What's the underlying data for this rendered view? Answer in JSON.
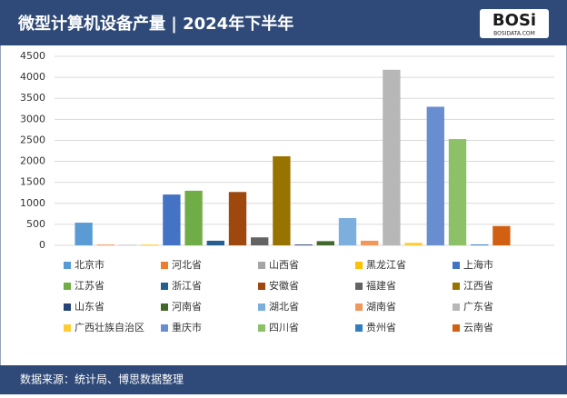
{
  "chart_data": {
    "type": "bar",
    "title": "微型计算机设备产量 | 2024年下半年",
    "categories": [
      "北京市",
      "河北省",
      "山西省",
      "黑龙江省",
      "上海市",
      "江苏省",
      "浙江省",
      "安徽省",
      "福建省",
      "江西省",
      "山东省",
      "河南省",
      "湖北省",
      "湖南省",
      "广东省",
      "广西壮族自治区",
      "重庆市",
      "四川省",
      "贵州省",
      "云南省"
    ],
    "values": [
      540,
      15,
      10,
      15,
      1210,
      1300,
      110,
      1270,
      190,
      2120,
      20,
      100,
      650,
      110,
      4180,
      60,
      3300,
      2530,
      20,
      460
    ],
    "colors": [
      "#5b9bd5",
      "#ed7d31",
      "#a5a5a5",
      "#ffc000",
      "#4472c4",
      "#70ad47",
      "#255e91",
      "#9e480e",
      "#636363",
      "#997300",
      "#264478",
      "#43682b",
      "#7cafdd",
      "#f1975a",
      "#b7b7b7",
      "#ffcd33",
      "#698ed0",
      "#8cc168",
      "#327dc2",
      "#d26012"
    ],
    "ylim": [
      0,
      4500
    ],
    "yticks": [
      0,
      500,
      1000,
      1500,
      2000,
      2500,
      3000,
      3500,
      4000,
      4500
    ],
    "grid": true
  },
  "logo": {
    "name": "BOSi",
    "site": "BOSIDATA.COM"
  },
  "footer": {
    "source": "数据来源：统计局、博思数据整理"
  }
}
